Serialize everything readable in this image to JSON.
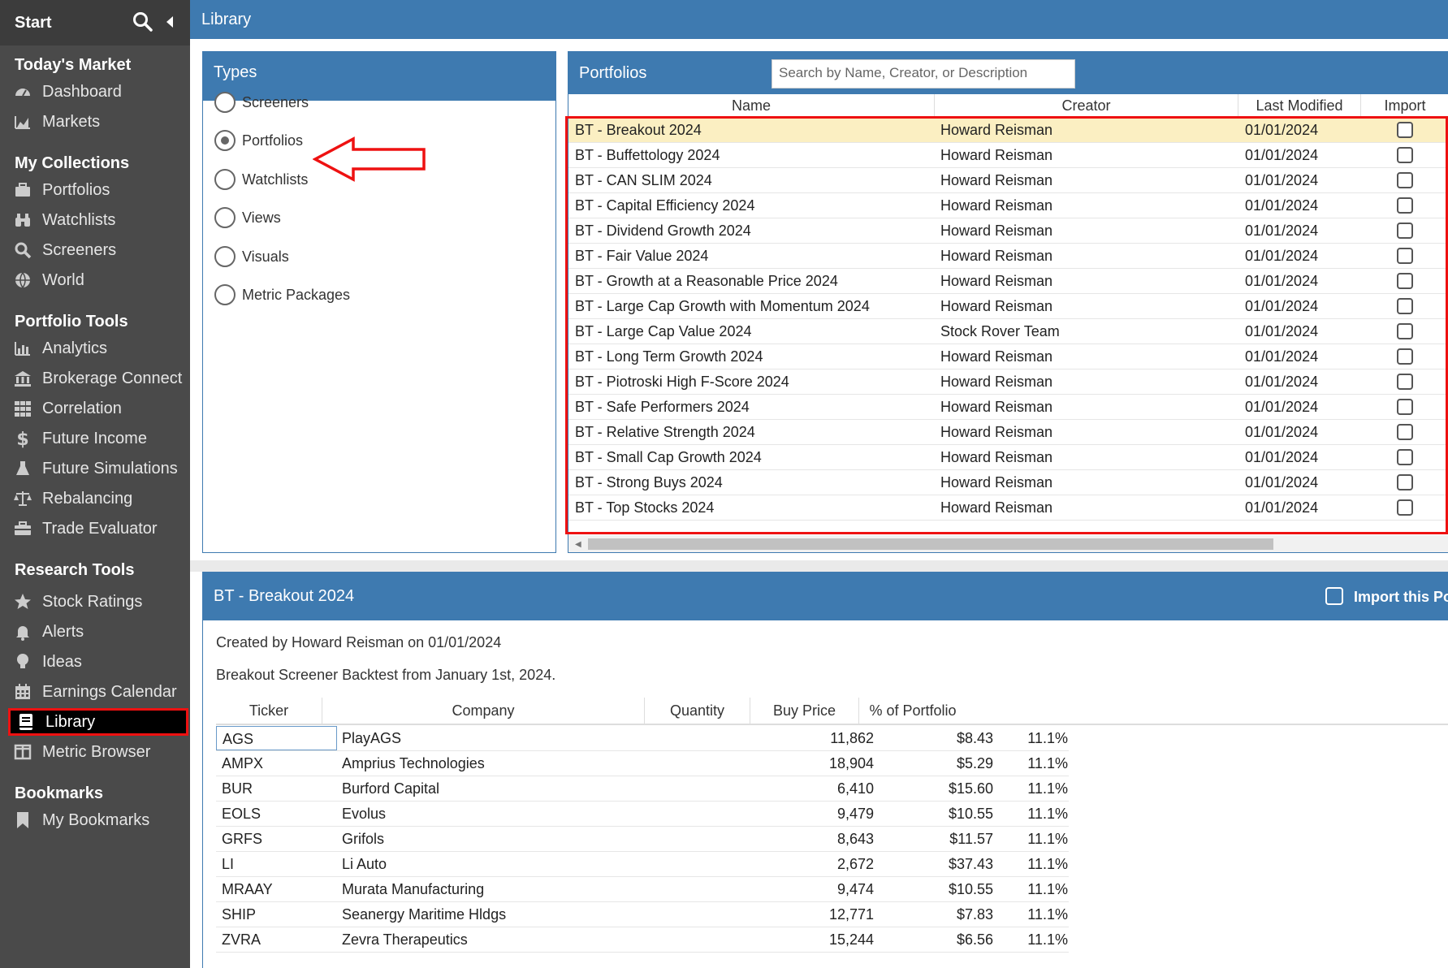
{
  "sidebar": {
    "start_label": "Start",
    "sections": [
      {
        "title": "Today's Market",
        "items": [
          {
            "label": "Dashboard",
            "icon": "dashboard-icon"
          },
          {
            "label": "Markets",
            "icon": "area-chart-icon"
          }
        ]
      },
      {
        "title": "My Collections",
        "items": [
          {
            "label": "Portfolios",
            "icon": "briefcase-icon"
          },
          {
            "label": "Watchlists",
            "icon": "binoculars-icon"
          },
          {
            "label": "Screeners",
            "icon": "search-icon"
          },
          {
            "label": "World",
            "icon": "globe-icon"
          }
        ]
      },
      {
        "title": "Portfolio Tools",
        "items": [
          {
            "label": "Analytics",
            "icon": "bar-chart-icon"
          },
          {
            "label": "Brokerage Connect",
            "icon": "bank-icon"
          },
          {
            "label": "Correlation",
            "icon": "grid-icon"
          },
          {
            "label": "Future Income",
            "icon": "dollar-icon"
          },
          {
            "label": "Future Simulations",
            "icon": "flask-icon"
          },
          {
            "label": "Rebalancing",
            "icon": "balance-scale-icon"
          },
          {
            "label": "Trade Evaluator",
            "icon": "toolbox-icon"
          }
        ]
      },
      {
        "title": "Research Tools",
        "items": [
          {
            "label": "Stock Ratings",
            "icon": "star-icon"
          },
          {
            "label": "Alerts",
            "icon": "bell-icon"
          },
          {
            "label": "Ideas",
            "icon": "lightbulb-icon"
          },
          {
            "label": "Earnings Calendar",
            "icon": "calendar-icon"
          },
          {
            "label": "Library",
            "icon": "book-icon",
            "active": true
          },
          {
            "label": "Metric Browser",
            "icon": "columns-icon"
          }
        ]
      },
      {
        "title": "Bookmarks",
        "items": [
          {
            "label": "My Bookmarks",
            "icon": "bookmark-icon"
          }
        ]
      }
    ]
  },
  "topbar": {
    "title": "Library"
  },
  "types": {
    "title": "Types",
    "options": [
      "Screeners",
      "Portfolios",
      "Watchlists",
      "Views",
      "Visuals",
      "Metric Packages"
    ],
    "selected": "Portfolios"
  },
  "portfolios": {
    "title": "Portfolios",
    "search_placeholder": "Search by Name, Creator, or Description",
    "columns": [
      "Name",
      "Creator",
      "Last Modified",
      "Import"
    ],
    "rows": [
      {
        "name": "BT - Breakout 2024",
        "creator": "Howard Reisman",
        "date": "01/01/2024"
      },
      {
        "name": "BT - Buffettology 2024",
        "creator": "Howard Reisman",
        "date": "01/01/2024"
      },
      {
        "name": "BT - CAN SLIM 2024",
        "creator": "Howard Reisman",
        "date": "01/01/2024"
      },
      {
        "name": "BT - Capital Efficiency 2024",
        "creator": "Howard Reisman",
        "date": "01/01/2024"
      },
      {
        "name": "BT - Dividend Growth 2024",
        "creator": "Howard Reisman",
        "date": "01/01/2024"
      },
      {
        "name": "BT - Fair Value 2024",
        "creator": "Howard Reisman",
        "date": "01/01/2024"
      },
      {
        "name": "BT - Growth at a Reasonable Price 2024",
        "creator": "Howard Reisman",
        "date": "01/01/2024"
      },
      {
        "name": "BT - Large Cap Growth with Momentum 2024",
        "creator": "Howard Reisman",
        "date": "01/01/2024"
      },
      {
        "name": "BT - Large Cap Value 2024",
        "creator": "Stock Rover Team",
        "date": "01/01/2024"
      },
      {
        "name": "BT - Long Term Growth 2024",
        "creator": "Howard Reisman",
        "date": "01/01/2024"
      },
      {
        "name": "BT - Piotroski High F-Score 2024",
        "creator": "Howard Reisman",
        "date": "01/01/2024"
      },
      {
        "name": "BT - Safe Performers 2024",
        "creator": "Howard Reisman",
        "date": "01/01/2024"
      },
      {
        "name": "BT - Relative Strength 2024",
        "creator": "Howard Reisman",
        "date": "01/01/2024"
      },
      {
        "name": "BT - Small Cap Growth 2024",
        "creator": "Howard Reisman",
        "date": "01/01/2024"
      },
      {
        "name": "BT - Strong Buys 2024",
        "creator": "Howard Reisman",
        "date": "01/01/2024"
      },
      {
        "name": "BT - Top Stocks 2024",
        "creator": "Howard Reisman",
        "date": "01/01/2024"
      }
    ]
  },
  "detail": {
    "title": "BT - Breakout 2024",
    "import_label": "Import this Por",
    "created": "Created by Howard Reisman on 01/01/2024",
    "description": "Breakout Screener Backtest from January 1st, 2024.",
    "columns": [
      "Ticker",
      "Company",
      "Quantity",
      "Buy Price",
      "% of Portfolio"
    ],
    "holdings": [
      {
        "ticker": "AGS",
        "company": "PlayAGS",
        "quantity": "11,862",
        "price": "$8.43",
        "pct": "11.1%"
      },
      {
        "ticker": "AMPX",
        "company": "Amprius Technologies",
        "quantity": "18,904",
        "price": "$5.29",
        "pct": "11.1%"
      },
      {
        "ticker": "BUR",
        "company": "Burford Capital",
        "quantity": "6,410",
        "price": "$15.60",
        "pct": "11.1%"
      },
      {
        "ticker": "EOLS",
        "company": "Evolus",
        "quantity": "9,479",
        "price": "$10.55",
        "pct": "11.1%"
      },
      {
        "ticker": "GRFS",
        "company": "Grifols",
        "quantity": "8,643",
        "price": "$11.57",
        "pct": "11.1%"
      },
      {
        "ticker": "LI",
        "company": "Li Auto",
        "quantity": "2,672",
        "price": "$37.43",
        "pct": "11.1%"
      },
      {
        "ticker": "MRAAY",
        "company": "Murata Manufacturing",
        "quantity": "9,474",
        "price": "$10.55",
        "pct": "11.1%"
      },
      {
        "ticker": "SHIP",
        "company": "Seanergy Maritime Hldgs",
        "quantity": "12,771",
        "price": "$7.83",
        "pct": "11.1%"
      },
      {
        "ticker": "ZVRA",
        "company": "Zevra Therapeutics",
        "quantity": "15,244",
        "price": "$6.56",
        "pct": "11.1%"
      }
    ]
  },
  "colors": {
    "sidebar_bg": "#4a4a4a",
    "header_blue": "#3e7ab0",
    "selected_row": "#fbefc2",
    "highlight_red": "#e11111"
  }
}
